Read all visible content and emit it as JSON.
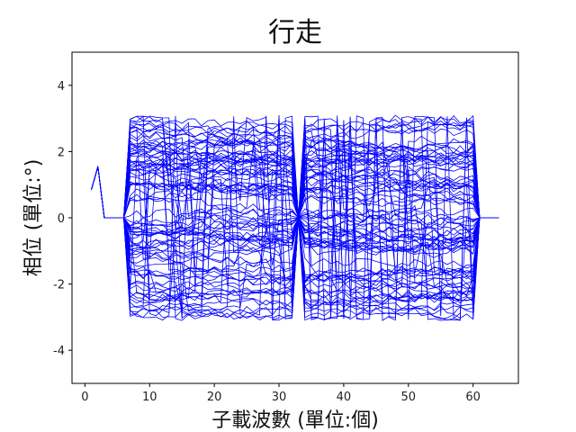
{
  "chart_data": {
    "type": "line",
    "title": "行走",
    "xlabel": "子載波數 (單位:個)",
    "ylabel": "相位 (單位:°)",
    "xlim": [
      -2,
      67
    ],
    "ylim": [
      -5,
      5
    ],
    "xticks": [
      0,
      10,
      20,
      30,
      40,
      50,
      60
    ],
    "yticks": [
      -4,
      -2,
      0,
      2,
      4
    ],
    "grid": false,
    "line_color": "#0000ff",
    "series_count": 90,
    "subcarrier_range": [
      1,
      64
    ],
    "null_subcarriers": [
      1,
      2,
      3,
      4,
      5,
      6,
      33,
      61,
      62,
      63,
      64
    ],
    "example_series": [
      {
        "x": [
          1,
          2,
          3,
          4,
          5,
          6,
          7,
          8,
          9,
          10,
          11,
          12,
          13,
          14,
          15
        ],
        "values": [
          0.85,
          1.55,
          0.0,
          0.0,
          0.0,
          0.0,
          2.2,
          2.1,
          2.3,
          2.2,
          2.1,
          2.2,
          2.4,
          2.3,
          2.2
        ]
      }
    ],
    "phase_wrap": [
      -3.1,
      3.1
    ]
  }
}
